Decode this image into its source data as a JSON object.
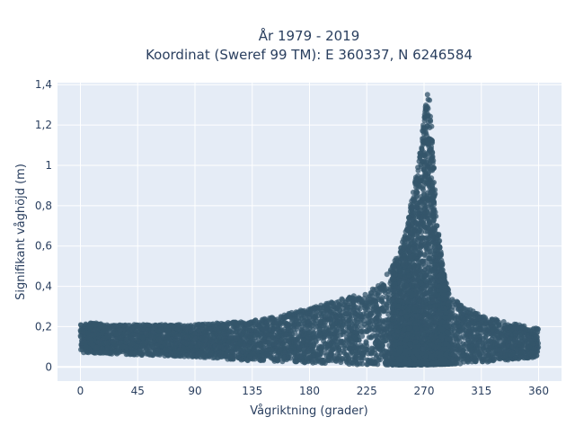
{
  "chart_data": {
    "type": "scatter",
    "title_line1": "År 1979 - 2019",
    "title_line2": "Koordinat (Sweref 99 TM): E 360337, N 6246584",
    "xlabel": "Vågriktning (grader)",
    "ylabel": "Signifikant våghöjd (m)",
    "xlim": [
      -18,
      378
    ],
    "ylim": [
      -0.07,
      1.41
    ],
    "x_ticks": [
      0,
      45,
      90,
      135,
      180,
      225,
      270,
      315,
      360
    ],
    "x_tick_labels": [
      "0",
      "45",
      "90",
      "135",
      "180",
      "225",
      "270",
      "315",
      "360"
    ],
    "y_ticks": [
      0,
      0.2,
      0.4,
      0.6,
      0.8,
      1.0,
      1.2,
      1.4
    ],
    "y_tick_labels": [
      "0",
      "0,2",
      "0,4",
      "0,6",
      "0,8",
      "1",
      "1,2",
      "1,4"
    ],
    "grid": true,
    "marker_color": "#34566b",
    "plot_background": "#e5ecf6",
    "description_series": [
      {
        "name": "",
        "note_upper_envelope": {
          "x": [
            0,
            10,
            20,
            45,
            90,
            135,
            180,
            200,
            225,
            240,
            250,
            255,
            260,
            265,
            268,
            270,
            272,
            274,
            276,
            280,
            285,
            290,
            300,
            315,
            330,
            345,
            360
          ],
          "y": [
            0.21,
            0.22,
            0.21,
            0.21,
            0.21,
            0.23,
            0.29,
            0.33,
            0.37,
            0.45,
            0.56,
            0.66,
            0.82,
            0.99,
            1.12,
            1.27,
            1.37,
            1.36,
            1.2,
            0.75,
            0.48,
            0.36,
            0.3,
            0.26,
            0.23,
            0.21,
            0.19
          ]
        },
        "note_lower_envelope": {
          "x": [
            0,
            45,
            90,
            135,
            180,
            225,
            270,
            315,
            360
          ],
          "y": [
            0.07,
            0.06,
            0.05,
            0.03,
            0.02,
            0.01,
            0.01,
            0.02,
            0.05
          ]
        }
      }
    ]
  }
}
